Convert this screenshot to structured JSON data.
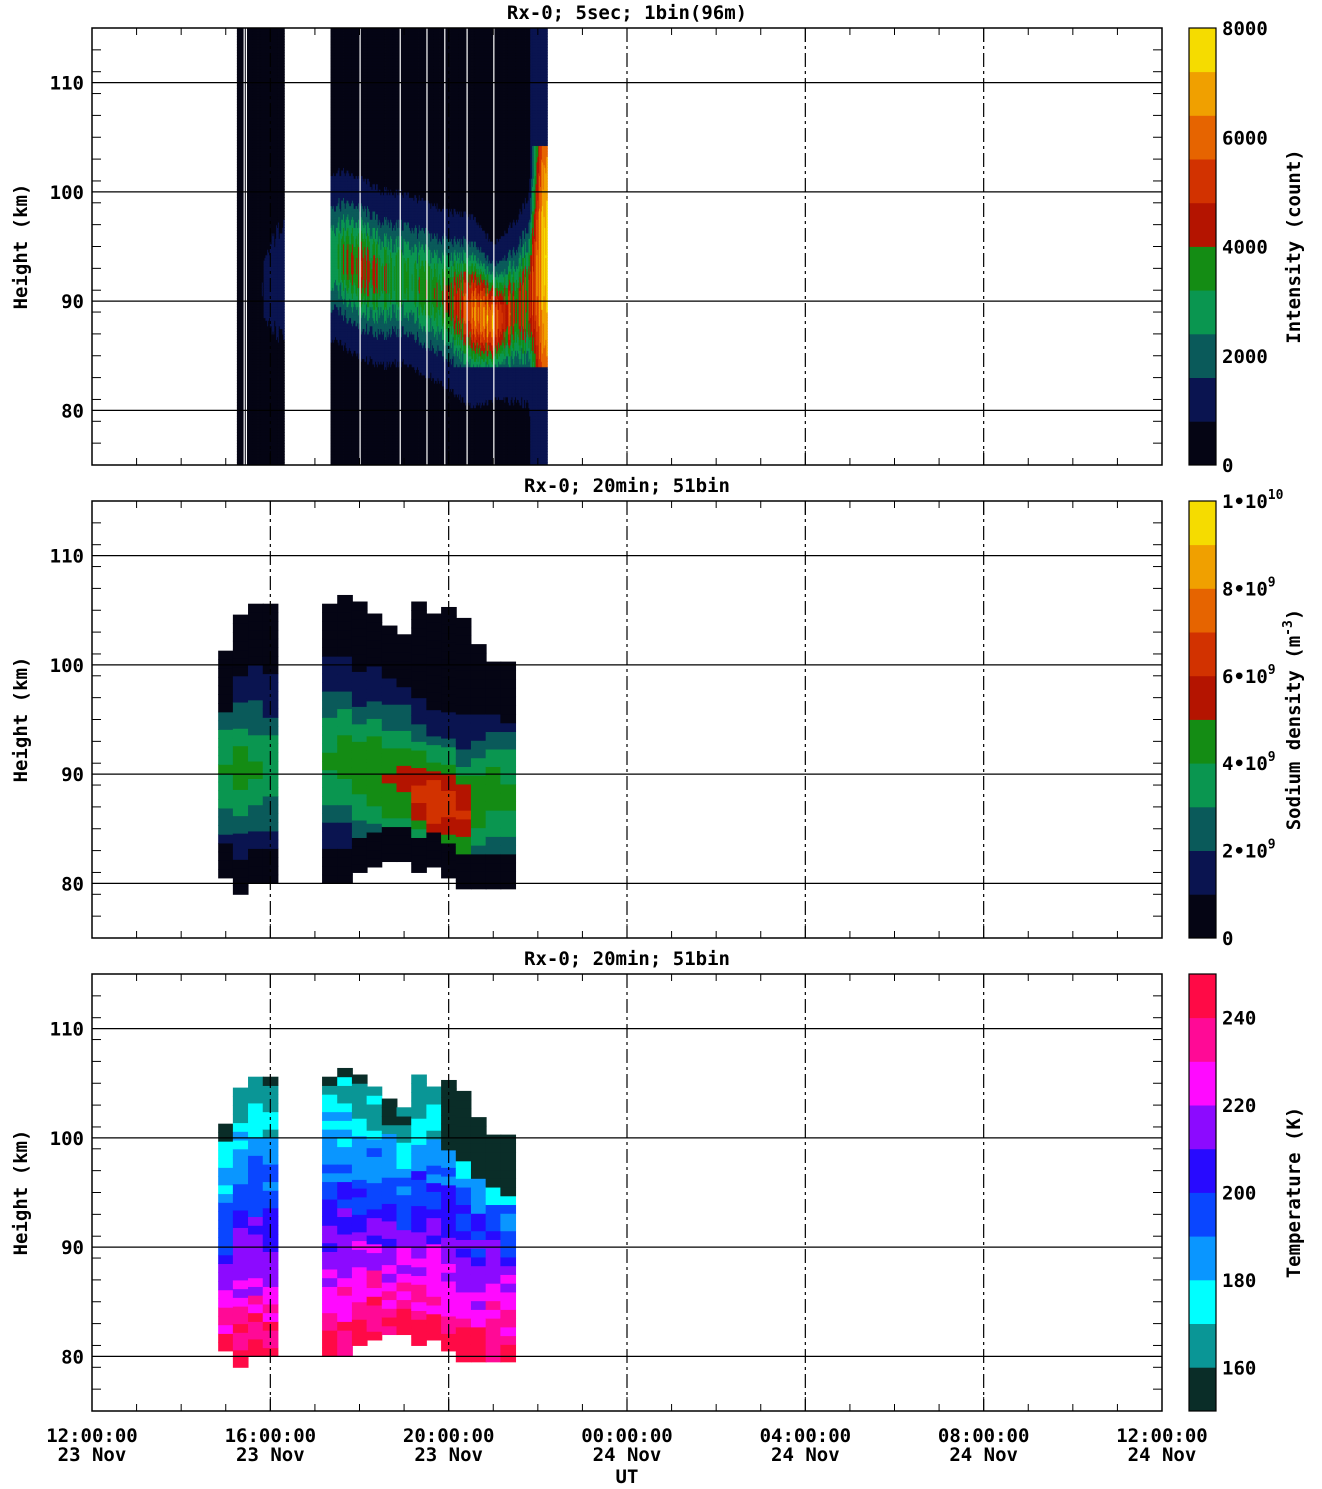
{
  "xaxis": {
    "label": "UT",
    "range_hours": [
      0,
      24
    ],
    "tick_hours": [
      0,
      4,
      8,
      12,
      16,
      20,
      24
    ],
    "tick_times": [
      "12:00:00",
      "16:00:00",
      "20:00:00",
      "00:00:00",
      "04:00:00",
      "08:00:00",
      "12:00:00"
    ],
    "tick_dates": [
      "23 Nov",
      "23 Nov",
      "23 Nov",
      "24 Nov",
      "24 Nov",
      "24 Nov",
      "24 Nov"
    ]
  },
  "chart_data": [
    {
      "type": "heatmap",
      "title": "Rx-0;  5sec; 1bin(96m)",
      "ylabel": "Height (km)",
      "ylim": [
        75,
        115
      ],
      "yticks": [
        80,
        90,
        100,
        110
      ],
      "colorbar": {
        "label": "Intensity (count)",
        "range": [
          0,
          8000
        ],
        "ticks": [
          0,
          2000,
          4000,
          6000,
          8000
        ],
        "tick_labels": [
          "0",
          "2000",
          "4000",
          "6000",
          "8000"
        ],
        "colors": [
          "#050514",
          "#0a1450",
          "#0a5a5a",
          "#0a9650",
          "#148c14",
          "#b41400",
          "#d23200",
          "#e66400",
          "#f0a000",
          "#f5dc00"
        ]
      },
      "profiles": [
        {
          "t": 3.3,
          "bottom": 75,
          "top": 115,
          "peak_h": 91,
          "peak_w": 6,
          "base": 0.02,
          "amp": 0.05
        },
        {
          "t": 3.8,
          "bottom": 75,
          "top": 115,
          "peak_h": 91,
          "peak_w": 6,
          "base": 0.03,
          "amp": 0.06
        },
        {
          "t": 5.5,
          "bottom": 75,
          "top": 115,
          "peak_h": 94,
          "peak_w": 5,
          "base": 0.07,
          "amp": 0.35
        },
        {
          "t": 6.0,
          "bottom": 75,
          "top": 115,
          "peak_h": 93,
          "peak_w": 5,
          "base": 0.07,
          "amp": 0.45
        },
        {
          "t": 6.5,
          "bottom": 75,
          "top": 115,
          "peak_h": 92,
          "peak_w": 5,
          "base": 0.07,
          "amp": 0.38
        },
        {
          "t": 7.0,
          "bottom": 75,
          "top": 115,
          "peak_h": 92,
          "peak_w": 5,
          "base": 0.07,
          "amp": 0.34
        },
        {
          "t": 7.5,
          "bottom": 75,
          "top": 115,
          "peak_h": 91,
          "peak_w": 5,
          "base": 0.07,
          "amp": 0.36
        },
        {
          "t": 8.0,
          "bottom": 75,
          "top": 115,
          "peak_h": 90,
          "peak_w": 5,
          "base": 0.07,
          "amp": 0.42
        },
        {
          "t": 8.5,
          "bottom": 75,
          "top": 115,
          "peak_h": 89,
          "peak_w": 5,
          "base": 0.07,
          "amp": 0.62
        },
        {
          "t": 9.0,
          "bottom": 75,
          "top": 115,
          "peak_h": 88,
          "peak_w": 4,
          "base": 0.07,
          "amp": 0.72
        },
        {
          "t": 9.5,
          "bottom": 75,
          "top": 115,
          "peak_h": 89,
          "peak_w": 5,
          "base": 0.07,
          "amp": 0.45
        },
        {
          "t": 9.8,
          "bottom": 75,
          "top": 115,
          "peak_h": 90,
          "peak_w": 6,
          "base": 0.06,
          "amp": 0.55
        },
        {
          "t": 10.1,
          "bottom": 75,
          "top": 115,
          "peak_h": 94,
          "peak_w": 12,
          "base": 0.6,
          "amp": 0.3
        }
      ]
    },
    {
      "type": "heatmap",
      "title": "Rx-0; 20min; 51bin",
      "ylabel": "Height (km)",
      "ylim": [
        75,
        115
      ],
      "yticks": [
        80,
        90,
        100,
        110
      ],
      "colorbar": {
        "label": "Sodium density (m-3)",
        "label_main": "Sodium density (m",
        "label_sup": "-3",
        "label_close": ")",
        "range": [
          0,
          10000000000
        ],
        "ticks": [
          0,
          2000000000,
          4000000000,
          6000000000,
          8000000000,
          10000000000
        ],
        "tick_mantissa": [
          "0",
          "2",
          "4",
          "6",
          "8",
          "1"
        ],
        "tick_exponent": [
          "",
          "9",
          "9",
          "9",
          "9",
          "10"
        ],
        "colors": [
          "#050514",
          "#0a1450",
          "#0a5a5a",
          "#0a9650",
          "#148c14",
          "#b41400",
          "#d23200",
          "#e66400",
          "#f0a000",
          "#f5dc00"
        ]
      },
      "profiles": [
        {
          "t": 3.0,
          "bottom": 80.5,
          "top": 100.5,
          "peak_h": 90,
          "peak_w": 6,
          "amp": 0.35
        },
        {
          "t": 3.33,
          "bottom": 79.0,
          "top": 104.5,
          "peak_h": 90,
          "peak_w": 6,
          "amp": 0.36
        },
        {
          "t": 3.67,
          "bottom": 80.0,
          "top": 105.5,
          "peak_h": 90,
          "peak_w": 6,
          "amp": 0.34
        },
        {
          "t": 4.0,
          "bottom": 80.0,
          "top": 105.0,
          "peak_h": 90,
          "peak_w": 6,
          "amp": 0.3
        },
        {
          "t": 5.33,
          "bottom": 80.0,
          "top": 105.5,
          "peak_h": 91,
          "peak_w": 6,
          "amp": 0.34
        },
        {
          "t": 5.67,
          "bottom": 80.0,
          "top": 106.0,
          "peak_h": 91,
          "peak_w": 6,
          "amp": 0.37
        },
        {
          "t": 6.0,
          "bottom": 81.0,
          "top": 105.5,
          "peak_h": 90,
          "peak_w": 6,
          "amp": 0.4
        },
        {
          "t": 6.33,
          "bottom": 81.5,
          "top": 104.5,
          "peak_h": 90,
          "peak_w": 6,
          "amp": 0.42
        },
        {
          "t": 6.67,
          "bottom": 82.0,
          "top": 103.0,
          "peak_h": 89,
          "peak_w": 6,
          "amp": 0.44
        },
        {
          "t": 7.0,
          "bottom": 82.0,
          "top": 102.5,
          "peak_h": 89,
          "peak_w": 6,
          "amp": 0.44
        },
        {
          "t": 7.33,
          "bottom": 81.0,
          "top": 105.0,
          "peak_h": 88,
          "peak_w": 5,
          "amp": 0.56
        },
        {
          "t": 7.67,
          "bottom": 81.5,
          "top": 104.5,
          "peak_h": 87,
          "peak_w": 5,
          "amp": 0.6
        },
        {
          "t": 8.0,
          "bottom": 80.5,
          "top": 104.5,
          "peak_h": 87,
          "peak_w": 5,
          "amp": 0.58
        },
        {
          "t": 8.33,
          "bottom": 79.5,
          "top": 104.0,
          "peak_h": 86,
          "peak_w": 5,
          "amp": 0.55
        },
        {
          "t": 8.67,
          "bottom": 79.5,
          "top": 101.5,
          "peak_h": 87,
          "peak_w": 5,
          "amp": 0.42
        },
        {
          "t": 9.0,
          "bottom": 79.5,
          "top": 100.0,
          "peak_h": 88,
          "peak_w": 6,
          "amp": 0.37
        },
        {
          "t": 9.33,
          "bottom": 79.5,
          "top": 99.5,
          "peak_h": 88,
          "peak_w": 6,
          "amp": 0.35
        }
      ]
    },
    {
      "type": "heatmap",
      "title": "Rx-0; 20min; 51bin",
      "ylabel": "Height (km)",
      "ylim": [
        75,
        115
      ],
      "yticks": [
        80,
        90,
        100,
        110
      ],
      "colorbar": {
        "label": "Temperature (K)",
        "range": [
          150,
          250
        ],
        "ticks": [
          160,
          180,
          200,
          220,
          240
        ],
        "tick_labels": [
          "160",
          "180",
          "200",
          "220",
          "240"
        ],
        "colors": [
          "#0a2d28",
          "#0a9696",
          "#00ffff",
          "#0a96ff",
          "#0a46ff",
          "#280aff",
          "#8c0aff",
          "#ff0aff",
          "#ff0a96",
          "#ff0a46"
        ]
      },
      "profiles": [
        {
          "t": 3.0,
          "bottom": 80.5,
          "top": 100.5
        },
        {
          "t": 3.33,
          "bottom": 79.0,
          "top": 104.5
        },
        {
          "t": 3.67,
          "bottom": 80.0,
          "top": 105.5
        },
        {
          "t": 4.0,
          "bottom": 80.0,
          "top": 105.0
        },
        {
          "t": 5.33,
          "bottom": 80.0,
          "top": 105.5
        },
        {
          "t": 5.67,
          "bottom": 80.0,
          "top": 106.0
        },
        {
          "t": 6.0,
          "bottom": 81.0,
          "top": 105.5
        },
        {
          "t": 6.33,
          "bottom": 81.5,
          "top": 104.5
        },
        {
          "t": 6.67,
          "bottom": 82.0,
          "top": 103.0
        },
        {
          "t": 7.0,
          "bottom": 82.0,
          "top": 102.5
        },
        {
          "t": 7.33,
          "bottom": 81.0,
          "top": 105.0
        },
        {
          "t": 7.67,
          "bottom": 81.5,
          "top": 104.5
        },
        {
          "t": 8.0,
          "bottom": 80.5,
          "top": 104.5
        },
        {
          "t": 8.33,
          "bottom": 79.5,
          "top": 104.0
        },
        {
          "t": 8.67,
          "bottom": 79.5,
          "top": 101.5
        },
        {
          "t": 9.0,
          "bottom": 79.5,
          "top": 100.0
        },
        {
          "t": 9.33,
          "bottom": 79.5,
          "top": 99.5
        }
      ]
    }
  ]
}
